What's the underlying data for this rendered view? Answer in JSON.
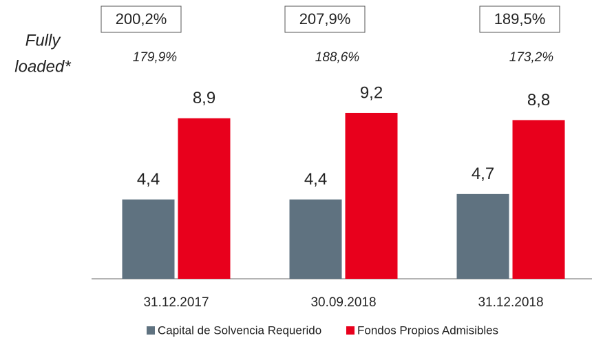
{
  "chart_data": {
    "type": "bar",
    "categories": [
      "31.12.2017",
      "30.09.2018",
      "31.12.2018"
    ],
    "series": [
      {
        "name": "Capital de Solvencia Requerido",
        "color": "#5f7280",
        "values": [
          4.4,
          4.4,
          4.7
        ],
        "value_labels": [
          "4,4",
          "4,4",
          "4,7"
        ]
      },
      {
        "name": "Fondos Propios Admisibles",
        "color": "#e8001c",
        "values": [
          8.9,
          9.2,
          8.8
        ],
        "value_labels": [
          "8,9",
          "9,2",
          "8,8"
        ]
      }
    ],
    "ylim": [
      0,
      10
    ],
    "solvency_ratios": [
      "200,2%",
      "207,9%",
      "189,5%"
    ],
    "fully_loaded_label": [
      "Fully",
      "loaded*"
    ],
    "fully_loaded_ratios": [
      "179,9%",
      "188,6%",
      "173,2%"
    ]
  }
}
